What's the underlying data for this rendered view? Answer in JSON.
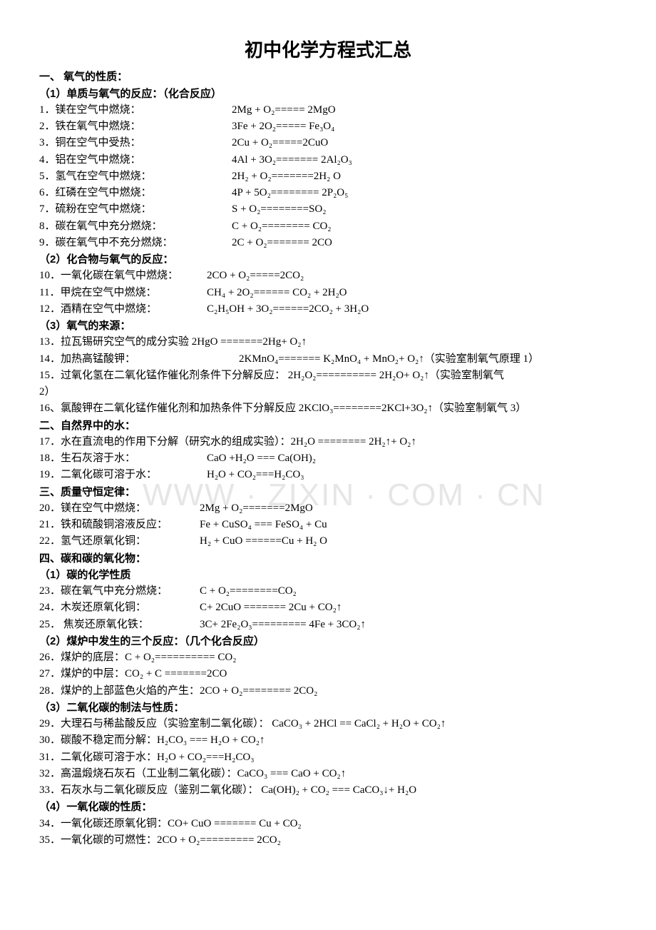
{
  "title": "初中化学方程式汇总",
  "watermark": "WWW · ZIXIN · COM · CN",
  "sections": {
    "s1": "一、 氧气的性质：",
    "s1_1": "（1）单质与氧气的反应：（化合反应）",
    "l1": {
      "label": "1．镁在空气中燃烧：",
      "eqn": "2Mg + O₂===== 2MgO"
    },
    "l2": {
      "label": "2．铁在氧气中燃烧：",
      "eqn": "3Fe + 2O₂===== Fe₃O₄"
    },
    "l3": {
      "label": "3．铜在空气中受热：",
      "eqn": "2Cu +   O₂=====2CuO"
    },
    "l4": {
      "label": "4．铝在空气中燃烧：",
      "eqn": "4Al + 3O₂======= 2Al₂O₃"
    },
    "l5": {
      "label": "5．氢气在空气中燃烧：",
      "eqn": "2H₂ + O₂=======2H₂ O"
    },
    "l6": {
      "label": "6．红磷在空气中燃烧：",
      "eqn": "4P + 5O₂======== 2P₂O₅"
    },
    "l7": {
      "label": "7．硫粉在空气中燃烧：",
      "eqn": "S + O₂========SO₂"
    },
    "l8": {
      "label": "8．碳在氧气中充分燃烧：",
      "eqn": "C + O₂========   CO₂"
    },
    "l9": {
      "label": "9．碳在氧气中不充分燃烧：",
      "eqn": "2C + O₂=======   2CO"
    },
    "s1_2": "（2）化合物与氧气的反应：",
    "l10": {
      "label": "10．一氧化碳在氧气中燃烧：",
      "eqn": "2CO + O₂=====2CO₂"
    },
    "l11": {
      "label": "11．甲烷在空气中燃烧：",
      "eqn": "CH₄ + 2O₂======   CO₂ + 2H₂O"
    },
    "l12": {
      "label": "12．酒精在空气中燃烧：",
      "eqn": "C₂H₅OH + 3O₂======2CO₂ + 3H₂O"
    },
    "s1_3": "（3）氧气的来源：",
    "l13": {
      "label": "13．拉瓦锡研究空气的成分实验 2HgO =======2Hg+ O₂↑",
      "eqn": ""
    },
    "l14": {
      "label": "14．加热高锰酸钾：",
      "eqn": "2KMnO₄======= K₂MnO₄ + MnO₂+ O₂↑（实验室制氧气原理 1）"
    },
    "l15": {
      "label": "15．过氧化氢在二氧化锰作催化剂条件下分解反应： 2H₂O₂========== 2H₂O+ O₂↑（实验室制氧气",
      "eqn": ""
    },
    "l15b": "2）",
    "l16": {
      "label": "16、氯酸钾在二氧化锰作催化剂和加热条件下分解反应 2KClO₃========2KCl+3O₂↑（实验室制氧气 3）",
      "eqn": ""
    },
    "s2": "二、自然界中的水：",
    "l17": {
      "label": "17．水在直流电的作用下分解（研究水的组成实验）：2H₂O  ========   2H₂↑+ O₂↑",
      "eqn": ""
    },
    "l18": {
      "label": "18．生石灰溶于水：",
      "eqn": "CaO +H₂O === Ca(OH)₂"
    },
    "l19": {
      "label": "19．二氧化碳可溶于水：",
      "eqn": "H₂O + CO₂===H₂CO₃"
    },
    "s3": "三、质量守恒定律：",
    "l20": {
      "label": "20．镁在空气中燃烧：",
      "eqn": "2Mg + O₂=======2MgO"
    },
    "l21": {
      "label": "21．铁和硫酸铜溶液反应：",
      "eqn": "Fe + CuSO₄ === FeSO₄ + Cu"
    },
    "l22": {
      "label": "22．氢气还原氧化铜：",
      "eqn": "H₂ + CuO ======Cu + H₂ O"
    },
    "s4": "四、碳和碳的氧化物：",
    "s4_1": "（1）碳的化学性质",
    "l23": {
      "label": "23．碳在氧气中充分燃烧：",
      "eqn": "C + O₂========CO₂"
    },
    "l24": {
      "label": "24．木炭还原氧化铜：",
      "eqn": "C+ 2CuO ======= 2Cu + CO₂↑"
    },
    "l25": {
      "label": "25．  焦炭还原氧化铁：",
      "eqn": "3C+ 2Fe₂O₃========= 4Fe + 3CO₂↑"
    },
    "s4_2": "（2）煤炉中发生的三个反应：（几个化合反应）",
    "l26": {
      "label": "26．煤炉的底层：C + O₂========== CO₂",
      "eqn": ""
    },
    "l27": {
      "label": "27．煤炉的中层：CO₂ + C =======2CO",
      "eqn": ""
    },
    "l28": {
      "label": "28．煤炉的上部蓝色火焰的产生：2CO + O₂======== 2CO₂",
      "eqn": ""
    },
    "s4_3": "（3）二氧化碳的制法与性质：",
    "l29": {
      "label": "29．大理石与稀盐酸反应（实验室制二氧化碳）： CaCO₃ + 2HCl == CaCl₂ + H₂O + CO₂↑",
      "eqn": ""
    },
    "l30": {
      "label": "30．碳酸不稳定而分解：H₂CO₃ === H₂O + CO₂↑",
      "eqn": ""
    },
    "l31": {
      "label": "31．二氧化碳可溶于水：H₂O + CO₂===H₂CO₃",
      "eqn": ""
    },
    "l32": {
      "label": "32．高温煅烧石灰石（工业制二氧化碳）：CaCO₃ === CaO + CO₂↑",
      "eqn": ""
    },
    "l33": {
      "label": "33．石灰水与二氧化碳反应（鉴别二氧化碳）： Ca(OH)₂ + CO₂ === CaCO₃↓+ H₂O",
      "eqn": ""
    },
    "s4_4": "（4）一氧化碳的性质：",
    "l34": {
      "label": "34．一氧化碳还原氧化铜：CO+ CuO ======= Cu + CO₂",
      "eqn": ""
    },
    "l35": {
      "label": "35．一氧化碳的可燃性：2CO + O₂========= 2CO₂",
      "eqn": ""
    }
  },
  "layout": {
    "label_widths": {
      "l1": 270,
      "l2": 270,
      "l3": 270,
      "l4": 270,
      "l5": 270,
      "l6": 270,
      "l7": 270,
      "l8": 270,
      "l9": 270,
      "l10": 235,
      "l11": 235,
      "l12": 235,
      "l14": 280,
      "l18": 235,
      "l19": 235,
      "l20": 225,
      "l21": 225,
      "l22": 225,
      "l23": 225,
      "l24": 225,
      "l25": 225
    }
  }
}
